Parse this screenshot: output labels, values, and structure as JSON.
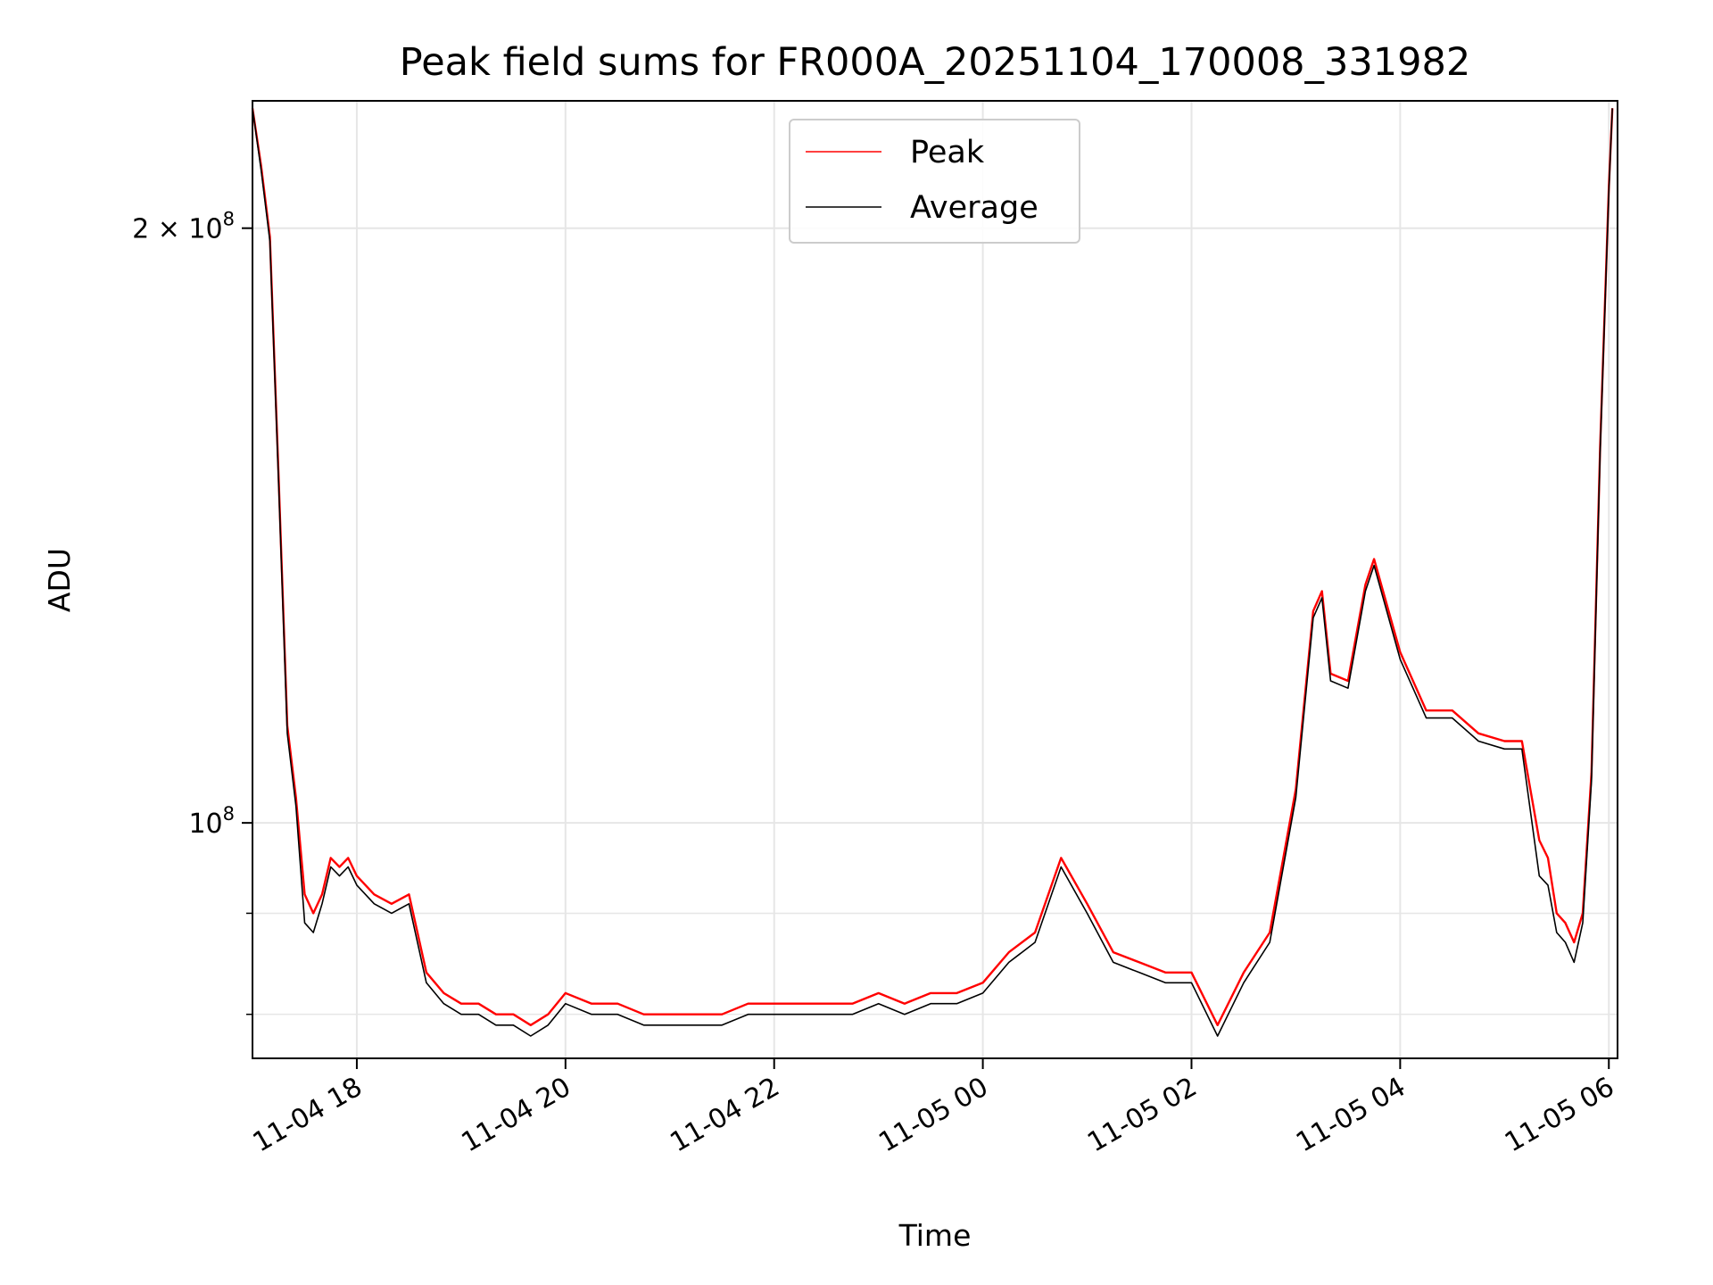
{
  "chart_data": {
    "type": "line",
    "title": "Peak field sums for FR000A_20251104_170008_331982",
    "xlabel": "Time",
    "ylabel": "ADU",
    "x_ticks": [
      "11-04 18",
      "11-04 20",
      "11-04 22",
      "11-05 00",
      "11-05 02",
      "11-05 04",
      "11-05 06"
    ],
    "y_ticks": [
      {
        "value": 200000000,
        "label_base": "2 × 10",
        "label_exp": "8"
      },
      {
        "value": 100000000,
        "label_base": "10",
        "label_exp": "8"
      }
    ],
    "y_scale": "log",
    "ylim": [
      76000000,
      232000000
    ],
    "xlim": [
      "2025-11-04 17:00",
      "2025-11-05 06:05"
    ],
    "grid": true,
    "legend_position": "upper center",
    "x": [
      "17:00",
      "17:05",
      "17:10",
      "17:15",
      "17:20",
      "17:25",
      "17:30",
      "17:35",
      "17:40",
      "17:45",
      "17:50",
      "17:55",
      "18:00",
      "18:10",
      "18:20",
      "18:30",
      "18:40",
      "18:50",
      "19:00",
      "19:10",
      "19:20",
      "19:30",
      "19:40",
      "19:50",
      "20:00",
      "20:15",
      "20:30",
      "20:45",
      "21:00",
      "21:15",
      "21:30",
      "21:45",
      "22:00",
      "22:15",
      "22:30",
      "22:45",
      "23:00",
      "23:15",
      "23:30",
      "23:45",
      "00:00",
      "00:15",
      "00:30",
      "00:45",
      "01:00",
      "01:15",
      "01:30",
      "01:45",
      "02:00",
      "02:15",
      "02:30",
      "02:45",
      "03:00",
      "03:10",
      "03:15",
      "03:20",
      "03:30",
      "03:40",
      "03:45",
      "04:00",
      "04:15",
      "04:30",
      "04:45",
      "05:00",
      "05:10",
      "05:20",
      "05:25",
      "05:30",
      "05:35",
      "05:40",
      "05:45",
      "05:50",
      "05:55",
      "06:00",
      "06:02"
    ],
    "series": [
      {
        "name": "Peak",
        "color": "#ff0000",
        "values": [
          230,
          215,
          198,
          150,
          112,
          103,
          92,
          90,
          92,
          96,
          95,
          96,
          94,
          92,
          91,
          92,
          84,
          82,
          81,
          81,
          80,
          80,
          79,
          80,
          82,
          81,
          81,
          80,
          80,
          80,
          80,
          81,
          81,
          81,
          81,
          81,
          82,
          81,
          82,
          82,
          83,
          86,
          88,
          96,
          91,
          86,
          85,
          84,
          84,
          79,
          84,
          88,
          104,
          128,
          131,
          119,
          118,
          132,
          136,
          122,
          114,
          114,
          111,
          110,
          110,
          98,
          96,
          90,
          89,
          87,
          90,
          106,
          155,
          210,
          230
        ]
      },
      {
        "name": "Average",
        "color": "#000000",
        "values": [
          230,
          214,
          197,
          149,
          111,
          102,
          89,
          88,
          91,
          95,
          94,
          95,
          93,
          91,
          90,
          91,
          83,
          81,
          80,
          80,
          79,
          79,
          78,
          79,
          81,
          80,
          80,
          79,
          79,
          79,
          79,
          80,
          80,
          80,
          80,
          80,
          81,
          80,
          81,
          81,
          82,
          85,
          87,
          95,
          90,
          85,
          84,
          83,
          83,
          78,
          83,
          87,
          103,
          127,
          130,
          118,
          117,
          131,
          135,
          121,
          113,
          113,
          110,
          109,
          109,
          94,
          93,
          88,
          87,
          85,
          89,
          105,
          154,
          209,
          230
        ]
      }
    ]
  }
}
